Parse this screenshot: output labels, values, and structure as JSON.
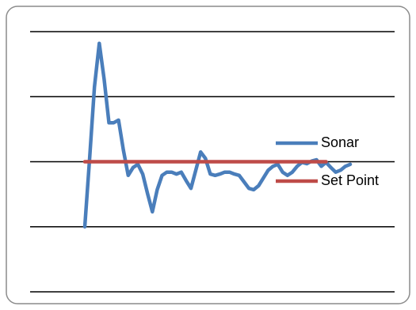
{
  "chart_data": {
    "type": "line",
    "categories": [
      null,
      null,
      null,
      null,
      null,
      null,
      null,
      null,
      null,
      null,
      null,
      null,
      null,
      null,
      null,
      null,
      null,
      null,
      null,
      null,
      null,
      null,
      null,
      null,
      null,
      null,
      null,
      null,
      null,
      null,
      null,
      null,
      null,
      null,
      null,
      null,
      null,
      null,
      null,
      null,
      null,
      null,
      null,
      null,
      null,
      null,
      null,
      null,
      null,
      null,
      null,
      null,
      null,
      null,
      null,
      null
    ],
    "series": [
      {
        "name": "Sonar",
        "color": "#4a7ebb",
        "values": [
          1.0,
          2.05,
          3.15,
          3.82,
          3.27,
          2.6,
          2.6,
          2.64,
          2.18,
          1.79,
          1.91,
          1.96,
          1.81,
          1.51,
          1.23,
          1.57,
          1.79,
          1.84,
          1.84,
          1.81,
          1.84,
          1.71,
          1.59,
          1.87,
          2.15,
          2.05,
          1.81,
          1.79,
          1.81,
          1.84,
          1.84,
          1.81,
          1.79,
          1.69,
          1.59,
          1.57,
          1.63,
          1.75,
          1.87,
          1.93,
          1.96,
          1.84,
          1.79,
          1.84,
          1.93,
          1.99,
          1.97,
          2.01,
          2.03,
          1.93,
          1.99,
          1.91,
          1.84,
          1.87,
          1.93,
          1.96
        ]
      },
      {
        "name": "Set Point",
        "color": "#be4b48",
        "values": [
          2,
          2,
          2,
          2,
          2,
          2,
          2,
          2,
          2,
          2,
          2,
          2,
          2,
          2,
          2,
          2,
          2,
          2,
          2,
          2,
          2,
          2,
          2,
          2,
          2,
          2,
          2,
          2,
          2,
          2,
          2,
          2,
          2,
          2,
          2,
          2,
          2,
          2,
          2,
          2,
          2,
          2,
          2,
          2,
          2,
          2,
          2,
          2,
          2,
          2,
          2,
          null,
          null,
          null,
          null,
          null
        ]
      }
    ],
    "ylim": [
      0,
      4
    ],
    "yticks": [
      0,
      1,
      2,
      3,
      4
    ],
    "grid": true,
    "legend": "right"
  }
}
